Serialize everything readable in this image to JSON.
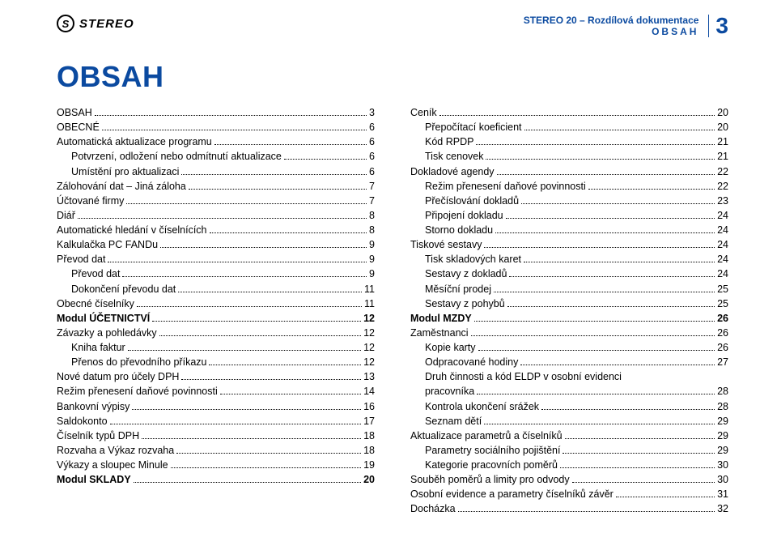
{
  "header": {
    "brand_logo_letter": "S",
    "brand_text": "STEREO",
    "doc_title": "STEREO 20 – Rozdílová dokumentace",
    "doc_section": "OBSAH",
    "page_number": "3"
  },
  "main_heading": "OBSAH",
  "colors": {
    "accent": "#0b4aa0",
    "text": "#000000",
    "background": "#ffffff"
  },
  "toc_left": [
    {
      "label": "OBSAH",
      "page": "3",
      "level": 0,
      "bold": false
    },
    {
      "label": "OBECNÉ",
      "page": "6",
      "level": 0,
      "bold": false
    },
    {
      "label": "Automatická aktualizace programu",
      "page": "6",
      "level": 0,
      "bold": false
    },
    {
      "label": "Potvrzení, odložení nebo odmítnutí aktualizace",
      "page": "6",
      "level": 1,
      "bold": false
    },
    {
      "label": "Umístění pro aktualizaci",
      "page": "6",
      "level": 1,
      "bold": false
    },
    {
      "label": "Zálohování dat – Jiná záloha",
      "page": "7",
      "level": 0,
      "bold": false
    },
    {
      "label": "Účtované firmy",
      "page": "7",
      "level": 0,
      "bold": false
    },
    {
      "label": "Diář",
      "page": "8",
      "level": 0,
      "bold": false
    },
    {
      "label": "Automatické hledání v číselnících",
      "page": "8",
      "level": 0,
      "bold": false
    },
    {
      "label": "Kalkulačka PC FANDu",
      "page": "9",
      "level": 0,
      "bold": false
    },
    {
      "label": "Převod dat",
      "page": "9",
      "level": 0,
      "bold": false
    },
    {
      "label": "Převod dat",
      "page": "9",
      "level": 1,
      "bold": false
    },
    {
      "label": "Dokončení převodu dat",
      "page": "11",
      "level": 1,
      "bold": false
    },
    {
      "label": "Obecné číselníky",
      "page": "11",
      "level": 0,
      "bold": false
    },
    {
      "label": "Modul ÚČETNICTVÍ",
      "page": "12",
      "level": 0,
      "bold": true
    },
    {
      "label": "Závazky a pohledávky",
      "page": "12",
      "level": 0,
      "bold": false
    },
    {
      "label": "Kniha faktur",
      "page": "12",
      "level": 1,
      "bold": false
    },
    {
      "label": "Přenos do převodního příkazu",
      "page": "12",
      "level": 1,
      "bold": false
    },
    {
      "label": "Nové datum pro účely DPH",
      "page": "13",
      "level": 0,
      "bold": false
    },
    {
      "label": "Režim přenesení daňové povinnosti",
      "page": "14",
      "level": 0,
      "bold": false
    },
    {
      "label": "Bankovní výpisy",
      "page": "16",
      "level": 0,
      "bold": false
    },
    {
      "label": "Saldokonto",
      "page": "17",
      "level": 0,
      "bold": false
    },
    {
      "label": "Číselník typů DPH",
      "page": "18",
      "level": 0,
      "bold": false
    },
    {
      "label": "Rozvaha a Výkaz rozvaha",
      "page": "18",
      "level": 0,
      "bold": false
    },
    {
      "label": "Výkazy a sloupec Minule",
      "page": "19",
      "level": 0,
      "bold": false
    },
    {
      "label": "Modul SKLADY",
      "page": "20",
      "level": 0,
      "bold": true
    }
  ],
  "toc_right": [
    {
      "label": "Ceník",
      "page": "20",
      "level": 0,
      "bold": false
    },
    {
      "label": "Přepočítací koeficient",
      "page": "20",
      "level": 1,
      "bold": false
    },
    {
      "label": "Kód RPDP",
      "page": "21",
      "level": 1,
      "bold": false
    },
    {
      "label": "Tisk cenovek",
      "page": "21",
      "level": 1,
      "bold": false
    },
    {
      "label": "Dokladové agendy",
      "page": "22",
      "level": 0,
      "bold": false
    },
    {
      "label": "Režim přenesení daňové povinnosti",
      "page": "22",
      "level": 1,
      "bold": false
    },
    {
      "label": "Přečíslování dokladů",
      "page": "23",
      "level": 1,
      "bold": false
    },
    {
      "label": "Připojení dokladu",
      "page": "24",
      "level": 1,
      "bold": false
    },
    {
      "label": "Storno dokladu",
      "page": "24",
      "level": 1,
      "bold": false
    },
    {
      "label": "Tiskové sestavy",
      "page": "24",
      "level": 0,
      "bold": false
    },
    {
      "label": "Tisk skladových karet",
      "page": "24",
      "level": 1,
      "bold": false
    },
    {
      "label": "Sestavy z dokladů",
      "page": "24",
      "level": 1,
      "bold": false
    },
    {
      "label": "Měsíční prodej",
      "page": "25",
      "level": 1,
      "bold": false
    },
    {
      "label": "Sestavy z pohybů",
      "page": "25",
      "level": 1,
      "bold": false
    },
    {
      "label": "Modul MZDY",
      "page": "26",
      "level": 0,
      "bold": true
    },
    {
      "label": "Zaměstnanci",
      "page": "26",
      "level": 0,
      "bold": false
    },
    {
      "label": "Kopie karty",
      "page": "26",
      "level": 1,
      "bold": false
    },
    {
      "label": "Odpracované hodiny",
      "page": "27",
      "level": 1,
      "bold": false
    },
    {
      "label": "Druh činnosti a kód ELDP v osobní evidenci pracovníka",
      "page": "28",
      "level": 1,
      "bold": false,
      "wrap": true
    },
    {
      "label": "Kontrola ukončení srážek",
      "page": "28",
      "level": 1,
      "bold": false
    },
    {
      "label": "Seznam dětí",
      "page": "29",
      "level": 1,
      "bold": false
    },
    {
      "label": "Aktualizace parametrů a číselníků",
      "page": "29",
      "level": 0,
      "bold": false
    },
    {
      "label": "Parametry sociálního pojištění",
      "page": "29",
      "level": 1,
      "bold": false
    },
    {
      "label": "Kategorie pracovních poměrů",
      "page": "30",
      "level": 1,
      "bold": false
    },
    {
      "label": "Souběh poměrů a limity pro odvody",
      "page": "30",
      "level": 0,
      "bold": false
    },
    {
      "label": "Osobní evidence a parametry číselníků závěr",
      "page": "31",
      "level": 0,
      "bold": false
    },
    {
      "label": "Docházka",
      "page": "32",
      "level": 0,
      "bold": false
    }
  ]
}
